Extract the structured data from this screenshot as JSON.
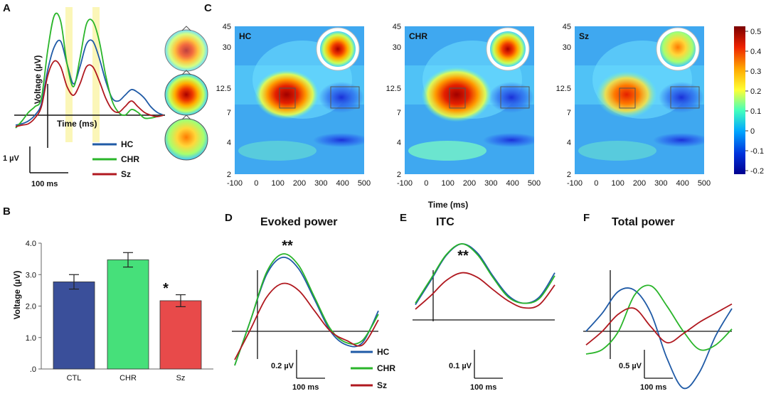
{
  "panel_labels": {
    "a": "A",
    "b": "B",
    "c": "C",
    "d": "D",
    "e": "E",
    "f": "F"
  },
  "colors": {
    "hc": "#1f5aa6",
    "chr": "#2ab52a",
    "sz": "#b0181f",
    "bar_ctl": "#3a4f9a",
    "bar_chr": "#46e07a",
    "bar_sz": "#e84a4a"
  },
  "legend": [
    {
      "name": "HC",
      "color": "#1f5aa6"
    },
    {
      "name": "CHR",
      "color": "#2ab52a"
    },
    {
      "name": "Sz",
      "color": "#b0181f"
    }
  ],
  "chart_data": [
    {
      "id": "A",
      "type": "line",
      "xlabel": "Time (ms)",
      "ylabel": "Voltage (µV)",
      "scale_bar": {
        "y": "1 µV",
        "x": "100 ms"
      },
      "note": "ERP waveforms; shaded windows at the two positive peaks",
      "series": [
        {
          "name": "HC",
          "values": [
            -0.35,
            -0.3,
            -0.2,
            0.0,
            0.4,
            1.6,
            2.4,
            2.6,
            1.8,
            1.1,
            1.7,
            2.5,
            2.6,
            2.0,
            1.2,
            0.6,
            0.5,
            0.7,
            0.9,
            0.8,
            0.6,
            0.3,
            0.1,
            0.0
          ]
        },
        {
          "name": "CHR",
          "values": [
            -0.45,
            -0.2,
            0.1,
            0.3,
            0.6,
            2.3,
            3.5,
            3.3,
            1.8,
            1.0,
            2.0,
            3.2,
            3.3,
            2.6,
            1.4,
            0.5,
            0.1,
            0.0,
            0.2,
            0.1,
            -0.1,
            -0.1,
            -0.05,
            0.0
          ]
        },
        {
          "name": "Sz",
          "values": [
            -0.4,
            -0.35,
            -0.3,
            -0.1,
            0.3,
            1.4,
            1.9,
            1.7,
            1.0,
            0.7,
            1.1,
            1.7,
            1.7,
            1.2,
            0.6,
            0.2,
            0.1,
            0.3,
            0.5,
            0.3,
            0.1,
            0.0,
            -0.05,
            0.0
          ]
        }
      ]
    },
    {
      "id": "B",
      "type": "bar",
      "categories": [
        "CTL",
        "CHR",
        "Sz"
      ],
      "values": [
        2.77,
        3.47,
        2.17
      ],
      "errors": [
        0.23,
        0.23,
        0.19
      ],
      "ylabel": "Voltage (µV)",
      "yticks": [
        ".0",
        "1.0",
        "2.0",
        "3.0",
        "4.0"
      ],
      "ylim": [
        0,
        4.0
      ],
      "annotation": "*"
    },
    {
      "id": "C",
      "type": "heatmap",
      "groups": [
        "HC",
        "CHR",
        "Sz"
      ],
      "xlabel": "Time (ms)",
      "xticks": [
        "-100",
        "0",
        "100",
        "200",
        "300",
        "400",
        "500"
      ],
      "yticks": [
        "45",
        "30",
        "12.5",
        "7",
        "4",
        "2"
      ],
      "colorbar": {
        "min": -0.2,
        "max": 0.5,
        "ticks": [
          "0.5",
          "0.4",
          "0.3",
          "0.2",
          "0.1",
          "0",
          "-0.1",
          "-0.2"
        ]
      },
      "blob_peak": [
        0.42,
        0.5,
        0.38
      ],
      "boxes": [
        "100-150 ms, 8-13 Hz",
        "350-450 ms, 8-13 Hz"
      ]
    },
    {
      "id": "D",
      "type": "line",
      "title": "Evoked power",
      "annotation": "**",
      "scale_bar": {
        "y": "0.2 µV",
        "x": "100 ms"
      },
      "series": [
        {
          "name": "HC",
          "values": [
            -0.3,
            0.1,
            0.5,
            0.65,
            0.55,
            0.28,
            0.0,
            -0.12,
            -0.1,
            0.18
          ]
        },
        {
          "name": "CHR",
          "values": [
            -0.3,
            0.1,
            0.52,
            0.68,
            0.58,
            0.3,
            0.02,
            -0.1,
            -0.08,
            0.15
          ]
        },
        {
          "name": "Sz",
          "values": [
            -0.25,
            0.02,
            0.3,
            0.42,
            0.36,
            0.18,
            0.0,
            -0.08,
            -0.12,
            0.1
          ]
        }
      ]
    },
    {
      "id": "E",
      "type": "line",
      "title": "ITC",
      "annotation": "**",
      "scale_bar": {
        "y": "0.1 µV",
        "x": "100 ms"
      },
      "series": [
        {
          "name": "HC",
          "values": [
            0.2,
            0.52,
            0.85,
            1.0,
            0.88,
            0.58,
            0.32,
            0.22,
            0.3,
            0.62
          ]
        },
        {
          "name": "CHR",
          "values": [
            0.22,
            0.54,
            0.86,
            1.0,
            0.86,
            0.56,
            0.3,
            0.22,
            0.28,
            0.58
          ]
        },
        {
          "name": "Sz",
          "values": [
            0.14,
            0.32,
            0.52,
            0.62,
            0.56,
            0.4,
            0.25,
            0.16,
            0.2,
            0.46
          ]
        }
      ]
    },
    {
      "id": "F",
      "type": "line",
      "title": "Total power",
      "scale_bar": {
        "y": "0.5 µV",
        "x": "100 ms"
      },
      "series": [
        {
          "name": "HC",
          "values": [
            0.0,
            0.4,
            0.88,
            0.9,
            0.4,
            -0.6,
            -1.25,
            -0.9,
            -0.1,
            0.5
          ]
        },
        {
          "name": "CHR",
          "values": [
            -0.5,
            -0.4,
            0.0,
            0.8,
            1.0,
            0.55,
            0.0,
            -0.4,
            -0.3,
            0.05
          ]
        },
        {
          "name": "Sz",
          "values": [
            -0.3,
            0.0,
            0.38,
            0.5,
            0.1,
            -0.25,
            -0.05,
            0.2,
            0.4,
            0.6
          ]
        }
      ]
    }
  ]
}
